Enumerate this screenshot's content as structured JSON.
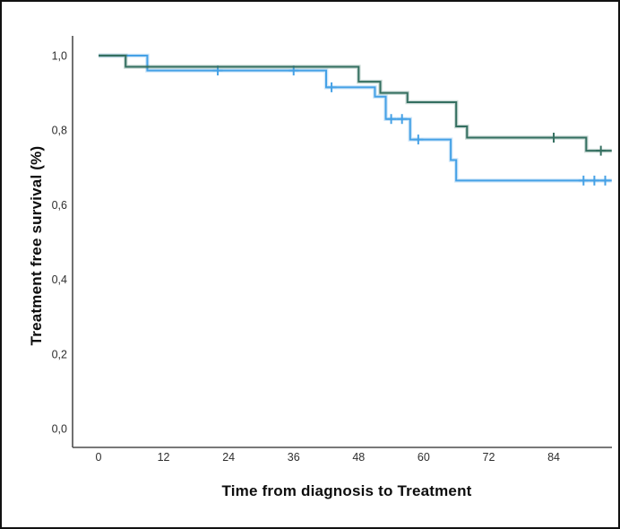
{
  "chart_data": {
    "type": "line",
    "subtype": "kaplan-meier-step-survival",
    "title": "",
    "xlabel": "Time from diagnosis to Treatment",
    "ylabel": "Treatment free survival (%)",
    "xlim": [
      0,
      95
    ],
    "ylim": [
      0.0,
      1.05
    ],
    "grid": false,
    "legend_position": "none",
    "decimal_separator": ",",
    "x_ticks": [
      {
        "value": 0,
        "label": "0"
      },
      {
        "value": 12,
        "label": "12"
      },
      {
        "value": 24,
        "label": "24"
      },
      {
        "value": 36,
        "label": "36"
      },
      {
        "value": 48,
        "label": "48"
      },
      {
        "value": 60,
        "label": "60"
      },
      {
        "value": 72,
        "label": "72"
      },
      {
        "value": 84,
        "label": "84"
      }
    ],
    "y_ticks": [
      {
        "value": 0.0,
        "label": "0,0"
      },
      {
        "value": 0.2,
        "label": "0,2"
      },
      {
        "value": 0.4,
        "label": "0,4"
      },
      {
        "value": 0.6,
        "label": "0,6"
      },
      {
        "value": 0.8,
        "label": "0,8"
      },
      {
        "value": 1.0,
        "label": "1,0"
      }
    ],
    "axis_color": "#4d4d4d",
    "tick_label_color": "#2e2e2e",
    "series": [
      {
        "name": "group-light-blue",
        "color": "#45a1e6",
        "end_t": 94.7,
        "steps": [
          [
            0,
            1.0
          ],
          [
            9,
            0.96
          ],
          [
            42,
            0.915
          ],
          [
            51,
            0.89
          ],
          [
            53,
            0.83
          ],
          [
            57.5,
            0.775
          ],
          [
            65,
            0.72
          ],
          [
            66,
            0.665
          ]
        ],
        "censors": [
          [
            22,
            0.96
          ],
          [
            36,
            0.96
          ],
          [
            43,
            0.915
          ],
          [
            54,
            0.83
          ],
          [
            56,
            0.83
          ],
          [
            59,
            0.775
          ],
          [
            89.5,
            0.665
          ],
          [
            91.5,
            0.665
          ],
          [
            93.5,
            0.665
          ]
        ]
      },
      {
        "name": "group-dark-green",
        "color": "#346f60",
        "end_t": 94.7,
        "steps": [
          [
            0,
            1.0
          ],
          [
            5,
            0.97
          ],
          [
            48,
            0.93
          ],
          [
            52,
            0.9
          ],
          [
            57,
            0.875
          ],
          [
            66,
            0.81
          ],
          [
            68,
            0.78
          ],
          [
            90,
            0.745
          ]
        ],
        "censors": [
          [
            84,
            0.78
          ],
          [
            92.7,
            0.745
          ]
        ]
      }
    ]
  }
}
